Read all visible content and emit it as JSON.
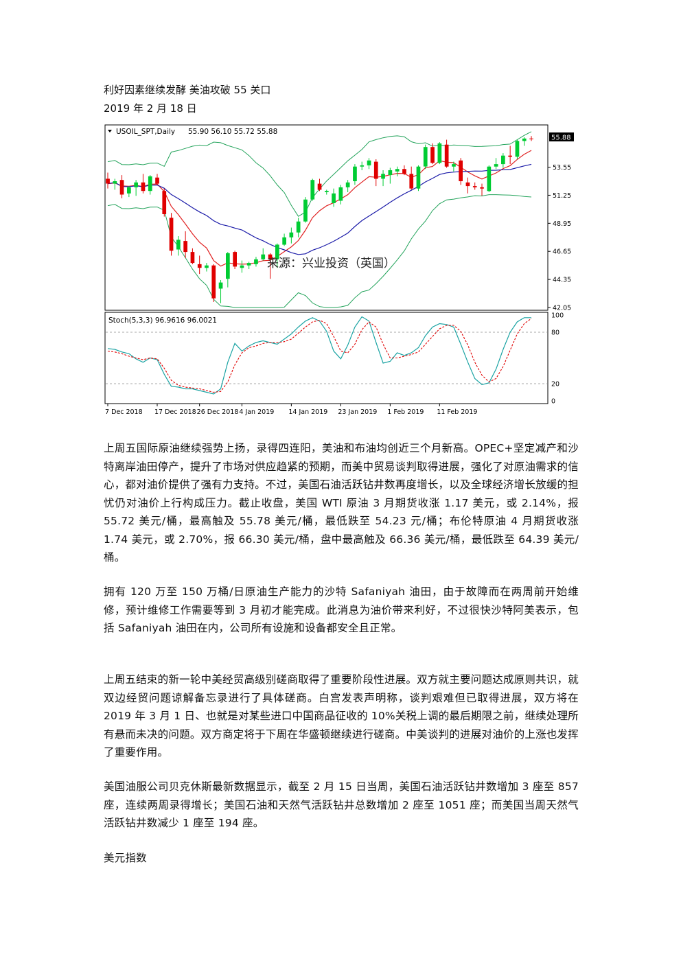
{
  "article": {
    "title": "利好因素继续发酵  美油攻破 55 关口",
    "date": "2019 年 2 月 18 日",
    "paragraphs": [
      "上周五国际原油继续强势上扬，录得四连阳，美油和布油均创近三个月新高。OPEC+坚定减产和沙特离岸油田停产，提升了市场对供应趋紧的预期，而美中贸易谈判取得进展，强化了对原油需求的信心，都对油价提供了强有力支持。不过，美国石油活跃钻井数再度增长，以及全球经济增长放缓的担忧仍对油价上行构成压力。截止收盘，美国 WTI 原油 3 月期货收涨 1.17 美元，或 2.14%，报 55.72 美元/桶，最高触及 55.78 美元/桶，最低跌至 54.23 元/桶；布伦特原油 4 月期货收涨 1.74 美元，或 2.70%，报 66.30 美元/桶，盘中最高触及 66.36 美元/桶，最低跌至 64.39 美元/桶。",
      "拥有 120 万至 150 万桶/日原油生产能力的沙特 Safaniyah 油田，由于故障而在两周前开始维修，预计维修工作需要等到 3 月初才能完成。此消息为油价带来利好，不过很快沙特阿美表示，包括 Safaniyah 油田在内，公司所有设施和设备都安全且正常。",
      "上周五结束的新一轮中美经贸高级别磋商取得了重要阶段性进展。双方就主要问题达成原则共识，就双边经贸问题谅解备忘录进行了具体磋商。白宫发表声明称，谈判艰难但已取得进展，双方将在 2019 年 3 月 1 日、也就是对某些进口中国商品征收的 10%关税上调的最后期限之前，继续处理所有悬而未决的问题。双方商定将于下周在华盛顿继续进行磋商。中美谈判的进展对油价的上涨也发挥了重要作用。",
      "美国油服公司贝克休斯最新数据显示，截至 2 月 15 日当周，美国石油活跃钻井数增加 3 座至 857 座，连续两周录得增长；美国石油和天然气活跃钻井总数增加 2 座至 1051 座；而美国当周天然气活跃钻井数减少 1 座至 194 座。",
      "美元指数"
    ]
  },
  "chart_data": {
    "type": "candlestick",
    "symbol_label": "USOIL_SPT,Daily",
    "ohlc_label": "55.90 56.10 55.72 55.88",
    "last_price_label": "55.88",
    "watermark": "来源：兴业投资（英国）",
    "price_ticks": [
      "53.55",
      "51.25",
      "48.95",
      "46.65",
      "44.35",
      "42.05"
    ],
    "price_ylim": [
      42.05,
      56.9
    ],
    "stoch_label": "Stoch(5,3,3) 96.9616 96.0021",
    "stoch_ticks": [
      "100",
      "80",
      "20",
      "0"
    ],
    "date_labels": [
      "7 Dec 2018",
      "17 Dec 2018",
      "26 Dec 2018",
      "4 Jan 2019",
      "14 Jan 2019",
      "23 Jan 2019",
      "1 Feb 2019",
      "11 Feb 2019"
    ],
    "date_label_index": [
      0,
      7,
      13,
      19,
      26,
      33,
      40,
      47
    ],
    "candles": [
      [
        52.6,
        53.1,
        51.8,
        52.2
      ],
      [
        52.2,
        52.6,
        51.7,
        52.4
      ],
      [
        52.5,
        52.9,
        51.0,
        51.3
      ],
      [
        51.4,
        52.0,
        51.1,
        51.9
      ],
      [
        51.9,
        52.5,
        51.2,
        52.3
      ],
      [
        52.3,
        53.0,
        51.4,
        51.6
      ],
      [
        51.6,
        52.9,
        51.3,
        52.8
      ],
      [
        52.7,
        53.0,
        52.1,
        52.2
      ],
      [
        51.6,
        51.8,
        49.5,
        49.7
      ],
      [
        49.4,
        49.8,
        46.3,
        46.7
      ],
      [
        46.8,
        47.9,
        46.3,
        47.6
      ],
      [
        47.5,
        48.3,
        46.1,
        46.6
      ],
      [
        46.6,
        46.9,
        45.6,
        45.7
      ],
      [
        45.6,
        46.3,
        44.8,
        45.3
      ],
      [
        45.3,
        45.7,
        45.0,
        45.5
      ],
      [
        45.5,
        45.6,
        42.5,
        42.8
      ],
      [
        43.6,
        44.3,
        42.4,
        44.1
      ],
      [
        44.4,
        46.6,
        43.7,
        46.5
      ],
      [
        46.6,
        46.7,
        45.2,
        45.4
      ],
      [
        45.3,
        45.9,
        44.9,
        45.5
      ],
      [
        45.5,
        45.8,
        45.2,
        45.7
      ],
      [
        45.6,
        46.2,
        45.4,
        46.0
      ],
      [
        46.0,
        46.9,
        45.9,
        46.4
      ],
      [
        46.4,
        46.5,
        44.4,
        46.0
      ],
      [
        46.0,
        47.3,
        45.3,
        47.2
      ],
      [
        47.2,
        48.1,
        47.1,
        47.8
      ],
      [
        47.8,
        48.6,
        47.3,
        48.2
      ],
      [
        48.2,
        49.4,
        47.8,
        49.1
      ],
      [
        49.1,
        51.1,
        49.0,
        50.9
      ],
      [
        50.9,
        52.6,
        50.8,
        52.5
      ],
      [
        52.2,
        52.6,
        51.6,
        51.7
      ],
      [
        51.5,
        51.7,
        51.3,
        51.6
      ],
      [
        50.6,
        51.8,
        50.3,
        51.4
      ],
      [
        50.8,
        52.1,
        50.5,
        51.9
      ],
      [
        51.9,
        52.5,
        51.5,
        52.3
      ],
      [
        52.4,
        53.8,
        52.1,
        53.6
      ],
      [
        53.6,
        54.0,
        53.3,
        53.7
      ],
      [
        53.7,
        54.3,
        53.4,
        54.1
      ],
      [
        54.0,
        54.2,
        52.0,
        52.6
      ],
      [
        52.6,
        53.3,
        52.0,
        53.0
      ],
      [
        52.9,
        53.5,
        52.2,
        53.3
      ],
      [
        53.2,
        53.6,
        52.8,
        53.4
      ],
      [
        53.4,
        53.7,
        52.9,
        53.0
      ],
      [
        53.0,
        53.6,
        51.7,
        51.8
      ],
      [
        51.8,
        53.7,
        51.6,
        53.6
      ],
      [
        53.6,
        55.4,
        53.4,
        55.2
      ],
      [
        55.2,
        55.5,
        53.8,
        53.9
      ],
      [
        53.9,
        55.6,
        53.8,
        55.5
      ],
      [
        55.4,
        55.8,
        53.5,
        53.6
      ],
      [
        53.6,
        54.0,
        53.2,
        53.8
      ],
      [
        54.1,
        54.3,
        52.1,
        52.4
      ],
      [
        52.3,
        52.7,
        51.4,
        52.0
      ],
      [
        52.0,
        52.3,
        51.7,
        51.9
      ],
      [
        51.9,
        52.2,
        51.2,
        51.8
      ],
      [
        51.6,
        53.7,
        51.5,
        53.6
      ],
      [
        53.6,
        54.3,
        53.4,
        53.8
      ],
      [
        53.8,
        54.7,
        53.5,
        54.5
      ],
      [
        54.5,
        55.3,
        53.8,
        54.4
      ],
      [
        54.4,
        55.8,
        54.2,
        55.7
      ],
      [
        55.7,
        56.0,
        55.3,
        55.9
      ],
      [
        55.9,
        56.1,
        55.7,
        55.88
      ]
    ],
    "stoch_main": [
      61,
      60,
      57,
      55,
      49,
      45,
      50,
      48,
      31,
      17,
      16,
      14,
      14,
      12,
      10,
      8,
      14,
      45,
      67,
      58,
      64,
      68,
      70,
      68,
      66,
      72,
      78,
      86,
      93,
      97,
      93,
      81,
      58,
      49,
      65,
      86,
      98,
      93,
      68,
      44,
      46,
      56,
      53,
      56,
      62,
      76,
      86,
      90,
      89,
      86,
      66,
      45,
      26,
      19,
      21,
      37,
      60,
      80,
      92,
      97,
      97
    ],
    "stoch_signal": [
      58,
      57,
      55,
      52,
      50,
      48,
      50,
      49,
      38,
      24,
      18,
      16,
      15,
      14,
      12,
      10,
      11,
      22,
      42,
      56,
      62,
      64,
      67,
      68,
      68,
      69,
      72,
      79,
      86,
      92,
      94,
      90,
      75,
      58,
      56,
      66,
      83,
      92,
      86,
      66,
      50,
      50,
      52,
      54,
      57,
      66,
      75,
      84,
      88,
      88,
      81,
      65,
      45,
      30,
      22,
      26,
      40,
      59,
      78,
      90,
      96
    ]
  }
}
